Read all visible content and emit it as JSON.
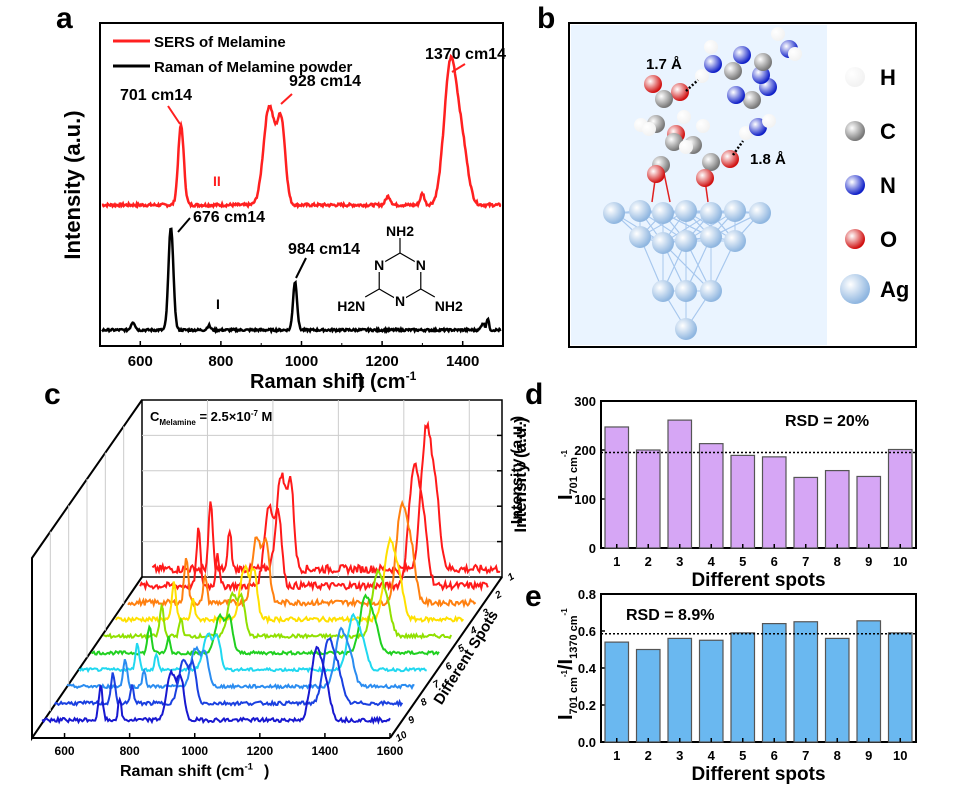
{
  "panels": {
    "a": "a",
    "b": "b",
    "c": "c",
    "d": "d",
    "e": "e"
  },
  "chart_data": [
    {
      "id": "a",
      "type": "line",
      "xlabel": "Raman shift (cm-1)",
      "ylabel": "Intensity (a.u.)",
      "xlim": [
        500,
        1500
      ],
      "xticks": [
        600,
        800,
        1000,
        1200,
        1400
      ],
      "legend": {
        "placement": "top-left",
        "entries": [
          {
            "name": "SERS of Melamine",
            "color": "#ff2020"
          },
          {
            "name": "Raman of Melamine powder",
            "color": "#000000"
          }
        ]
      },
      "series": [
        {
          "name": "SERS of Melamine",
          "color": "#ff2020",
          "peaks": [
            {
              "x": 701,
              "h": 0.55,
              "w": 7
            },
            {
              "x": 920,
              "h": 0.68,
              "w": 14
            },
            {
              "x": 950,
              "h": 0.55,
              "w": 10
            },
            {
              "x": 1370,
              "h": 0.98,
              "w": 16
            },
            {
              "x": 1400,
              "h": 0.35,
              "w": 14
            },
            {
              "x": 1300,
              "h": 0.08,
              "w": 5
            },
            {
              "x": 1215,
              "h": 0.06,
              "w": 6
            }
          ]
        },
        {
          "name": "Raman of Melamine powder",
          "color": "#000000",
          "peaks": [
            {
              "x": 582,
              "h": 0.07,
              "w": 5
            },
            {
              "x": 676,
              "h": 0.9,
              "w": 6
            },
            {
              "x": 984,
              "h": 0.42,
              "w": 5
            },
            {
              "x": 770,
              "h": 0.04,
              "w": 4
            },
            {
              "x": 1450,
              "h": 0.06,
              "w": 4
            },
            {
              "x": 1462,
              "h": 0.1,
              "w": 3
            }
          ]
        }
      ],
      "annotations": [
        {
          "text": "701 cm",
          "sup": "-1",
          "color": "#ff2020",
          "x": 701
        },
        {
          "text": "928 cm",
          "sup": "-1",
          "color": "#ff2020",
          "x": 928
        },
        {
          "text": "1370 cm",
          "sup": "-1",
          "color": "#ff2020",
          "x": 1370
        },
        {
          "text": "676 cm",
          "sup": "-1",
          "color": "#000000",
          "x": 676
        },
        {
          "text": "984 cm",
          "sup": "-1",
          "color": "#000000",
          "x": 984
        },
        {
          "text": "II",
          "color": "#ff2020",
          "x": 790
        },
        {
          "text": "I",
          "color": "#000000",
          "x": 790
        }
      ],
      "structure_labels": {
        "top": "NH2",
        "left": "H2N",
        "right": "NH2",
        "ring_n": "N"
      }
    },
    {
      "id": "b",
      "type": "diagram",
      "distances": [
        "1.7 Å",
        "1.8 Å"
      ],
      "legend": [
        {
          "label": "H",
          "color": "#f2f2f2"
        },
        {
          "label": "C",
          "color": "#777777"
        },
        {
          "label": "N",
          "color": "#1020c8"
        },
        {
          "label": "O",
          "color": "#d01010"
        },
        {
          "label": "Ag",
          "color": "#8fb6e0"
        }
      ]
    },
    {
      "id": "c",
      "type": "line",
      "xlabel": "Raman shift (cm-1)",
      "ylabel": "Intensity (a.u.)",
      "zlabel": "Different Spots",
      "annotation": {
        "text": "C",
        "sub": "Melamine",
        "rest": " = 2.5×10",
        "sup": "-7",
        "tail": " M"
      },
      "xlim": [
        500,
        1600
      ],
      "xticks": [
        600,
        800,
        1000,
        1200,
        1400,
        1600
      ],
      "spots": [
        "1",
        "2",
        "3",
        "4",
        "5",
        "6",
        "7",
        "8",
        "9",
        "10"
      ],
      "colors": [
        "#ff1a1a",
        "#ff1a1a",
        "#ff8010",
        "#ffe000",
        "#90e000",
        "#20d020",
        "#20d8f0",
        "#2a8cf0",
        "#1a40e0",
        "#1818d0"
      ],
      "peak_heights_relative": [
        1.0,
        0.85,
        0.7,
        0.55,
        0.45,
        0.4,
        0.38,
        0.4,
        0.45,
        0.5
      ]
    },
    {
      "id": "d",
      "type": "bar",
      "categories": [
        "1",
        "2",
        "3",
        "4",
        "5",
        "6",
        "7",
        "8",
        "9",
        "10"
      ],
      "values": [
        247,
        200,
        261,
        213,
        189,
        186,
        144,
        158,
        146,
        201
      ],
      "mean_line": 195,
      "ylim": [
        0,
        300
      ],
      "yticks": [
        0,
        100,
        200,
        300
      ],
      "xlabel": "Different spots",
      "ylabel": "I",
      "ylabel_sub": "701 cm",
      "ylabel_sup": "-1",
      "outer_label": "Intensity (a.u.)",
      "annotation": "RSD = 20%",
      "color": "#d6a6f5"
    },
    {
      "id": "e",
      "type": "bar",
      "categories": [
        "1",
        "2",
        "3",
        "4",
        "5",
        "6",
        "7",
        "8",
        "9",
        "10"
      ],
      "values": [
        0.54,
        0.5,
        0.56,
        0.55,
        0.59,
        0.64,
        0.65,
        0.56,
        0.655,
        0.59
      ],
      "mean_line": 0.585,
      "ylim": [
        0,
        0.8
      ],
      "yticks": [
        0.0,
        0.2,
        0.4,
        0.6,
        0.8
      ],
      "xlabel": "Different spots",
      "ylabel": "I701 cm-1/I1370 cm-1",
      "annotation": "RSD = 8.9%",
      "color": "#6ab8f0"
    }
  ]
}
